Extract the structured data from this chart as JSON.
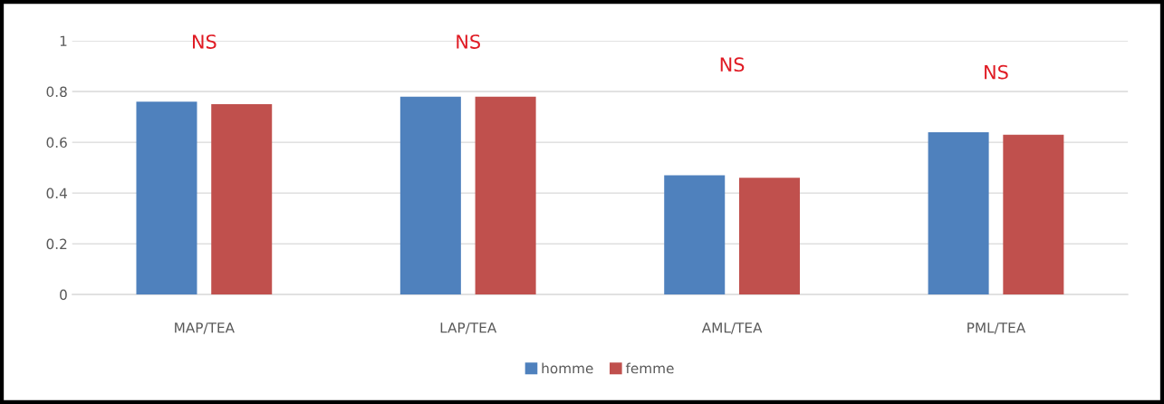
{
  "chart_data": {
    "type": "bar",
    "categories": [
      "MAP/TEA",
      "LAP/TEA",
      "AML/TEA",
      "PML/TEA"
    ],
    "series": [
      {
        "name": "homme",
        "color": "#4f81bd",
        "values": [
          0.76,
          0.78,
          0.47,
          0.64
        ]
      },
      {
        "name": "femme",
        "color": "#c0504d",
        "values": [
          0.75,
          0.78,
          0.46,
          0.63
        ]
      }
    ],
    "ylim": [
      0,
      1
    ],
    "yticks": [
      0,
      0.2,
      0.4,
      0.6,
      0.8,
      1
    ],
    "grid": "y",
    "legend": "bottom",
    "annotations": [
      "NS",
      "NS",
      "NS",
      "NS"
    ]
  }
}
